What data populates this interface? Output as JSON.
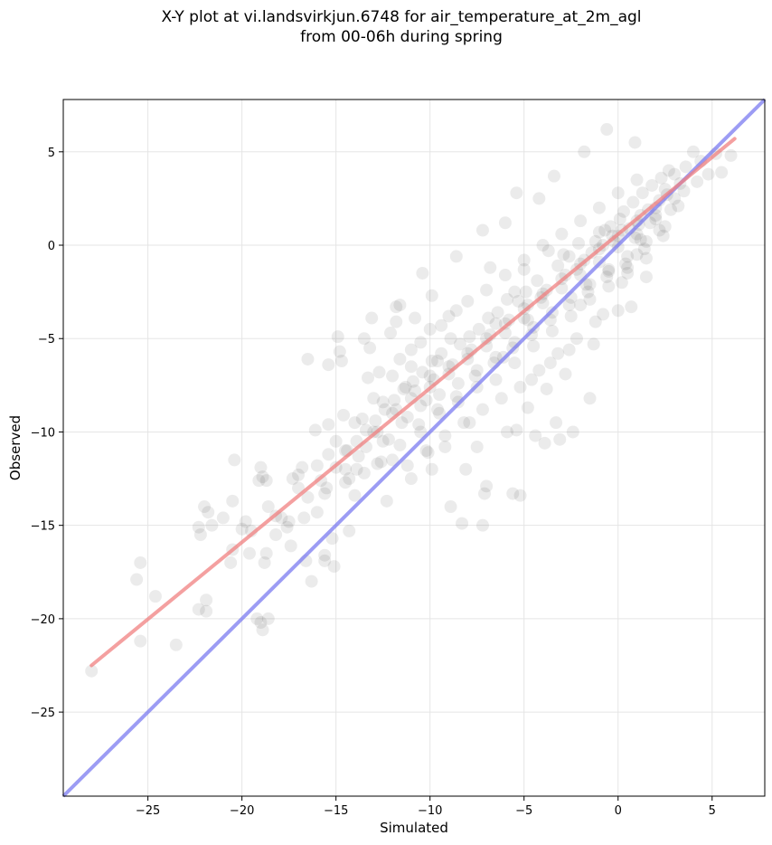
{
  "chart_data": {
    "type": "scatter",
    "title_line1": "X-Y plot at vi.landsvirkjun.6748 for air_temperature_at_2m_agl",
    "title_line2": "from 00-06h during spring",
    "xlabel": "Simulated",
    "ylabel": "Observed",
    "xlim": [
      -29.5,
      7.8
    ],
    "ylim": [
      -29.5,
      7.8
    ],
    "xticks": [
      -25,
      -20,
      -15,
      -10,
      -5,
      0,
      5
    ],
    "yticks": [
      -25,
      -20,
      -15,
      -10,
      -5,
      0,
      5
    ],
    "xtick_labels": [
      "−25",
      "−20",
      "−15",
      "−10",
      "−5",
      "0",
      "5"
    ],
    "ytick_labels": [
      "−25",
      "−20",
      "−15",
      "−10",
      "−5",
      "0",
      "5"
    ],
    "grid": true,
    "point_color": "#000000",
    "point_opacity": 0.08,
    "regression_line": {
      "color": "#f08080",
      "x": [
        -28,
        6.2
      ],
      "y": [
        -22.5,
        5.7
      ]
    },
    "identity_line": {
      "color": "#7b7bf0",
      "x": [
        -29.5,
        7.8
      ],
      "y": [
        -29.5,
        7.8
      ]
    },
    "points": [
      [
        -28.0,
        -22.8
      ],
      [
        -25.6,
        -17.9
      ],
      [
        -25.4,
        -17.0
      ],
      [
        -25.4,
        -21.2
      ],
      [
        -24.6,
        -18.8
      ],
      [
        -23.5,
        -21.4
      ],
      [
        -22.2,
        -15.5
      ],
      [
        -22.0,
        -14.0
      ],
      [
        -21.9,
        -19.0
      ],
      [
        -21.8,
        -14.3
      ],
      [
        -21.6,
        -15.0
      ],
      [
        -21.0,
        -14.6
      ],
      [
        -22.3,
        -15.1
      ],
      [
        -21.9,
        -19.6
      ],
      [
        -22.3,
        -19.5
      ],
      [
        -20.5,
        -13.7
      ],
      [
        -20.4,
        -11.5
      ],
      [
        -20.5,
        -16.3
      ],
      [
        -20.6,
        -17.0
      ],
      [
        -20.0,
        -15.2
      ],
      [
        -19.8,
        -14.8
      ],
      [
        -19.5,
        -15.3
      ],
      [
        -19.6,
        -16.5
      ],
      [
        -19.1,
        -12.6
      ],
      [
        -19.0,
        -11.9
      ],
      [
        -18.9,
        -12.4
      ],
      [
        -18.7,
        -12.6
      ],
      [
        -18.6,
        -14.0
      ],
      [
        -18.8,
        -17.0
      ],
      [
        -18.7,
        -16.5
      ],
      [
        -19.2,
        -20.0
      ],
      [
        -18.9,
        -20.6
      ],
      [
        -18.6,
        -20.0
      ],
      [
        -19.0,
        -20.2
      ],
      [
        -18.2,
        -14.5
      ],
      [
        -18.2,
        -15.5
      ],
      [
        -17.9,
        -14.6
      ],
      [
        -17.6,
        -15.1
      ],
      [
        -17.5,
        -14.8
      ],
      [
        -17.4,
        -16.1
      ],
      [
        -17.3,
        -12.5
      ],
      [
        -17.0,
        -12.3
      ],
      [
        -16.8,
        -11.9
      ],
      [
        -16.7,
        -14.6
      ],
      [
        -16.6,
        -16.9
      ],
      [
        -16.3,
        -18.0
      ],
      [
        -16.5,
        -6.1
      ],
      [
        -16.1,
        -9.9
      ],
      [
        -16.0,
        -14.3
      ],
      [
        -15.8,
        -12.6
      ],
      [
        -15.6,
        -13.3
      ],
      [
        -15.4,
        -11.2
      ],
      [
        -15.4,
        -9.6
      ],
      [
        -15.2,
        -15.7
      ],
      [
        -15.1,
        -17.2
      ],
      [
        -15.0,
        -11.9
      ],
      [
        -15.6,
        -16.6
      ],
      [
        -15.6,
        -16.9
      ],
      [
        -15.4,
        -6.4
      ],
      [
        -14.9,
        -4.9
      ],
      [
        -14.8,
        -5.7
      ],
      [
        -14.7,
        -6.2
      ],
      [
        -14.3,
        -12.5
      ],
      [
        -14.5,
        -11.0
      ],
      [
        -14.6,
        -9.1
      ],
      [
        -14.3,
        -15.3
      ],
      [
        -14.0,
        -13.4
      ],
      [
        -13.9,
        -12.0
      ],
      [
        -13.6,
        -9.3
      ],
      [
        -13.4,
        -10.8
      ],
      [
        -13.3,
        -7.1
      ],
      [
        -13.2,
        -5.5
      ],
      [
        -13.1,
        -3.9
      ],
      [
        -12.8,
        -11.7
      ],
      [
        -12.5,
        -8.4
      ],
      [
        -12.2,
        -10.4
      ],
      [
        -12.3,
        -13.7
      ],
      [
        -12.1,
        -4.7
      ],
      [
        -11.8,
        -4.1
      ],
      [
        -11.6,
        -6.1
      ],
      [
        -11.6,
        -3.2
      ],
      [
        -11.3,
        -7.6
      ],
      [
        -11.2,
        -9.2
      ],
      [
        -11.0,
        -12.5
      ],
      [
        -10.8,
        -3.9
      ],
      [
        -10.5,
        -5.2
      ],
      [
        -10.4,
        -1.5
      ],
      [
        -10.2,
        -8.3
      ],
      [
        -10.1,
        -11.1
      ],
      [
        -9.9,
        -12.0
      ],
      [
        -9.6,
        -6.2
      ],
      [
        -9.4,
        -4.3
      ],
      [
        -9.2,
        -10.8
      ],
      [
        -8.9,
        -14.0
      ],
      [
        -8.6,
        -3.5
      ],
      [
        -8.3,
        -14.9
      ],
      [
        -8.1,
        -12.0
      ],
      [
        -7.9,
        -9.5
      ],
      [
        -7.5,
        -10.8
      ],
      [
        -7.2,
        -15.0
      ],
      [
        -7.1,
        -13.3
      ],
      [
        -7.0,
        -12.9
      ],
      [
        -6.8,
        -1.2
      ],
      [
        -6.5,
        -4.2
      ],
      [
        -6.1,
        -6.0
      ],
      [
        -5.9,
        -10.0
      ],
      [
        -5.6,
        -13.3
      ],
      [
        -5.5,
        -2.5
      ],
      [
        -5.4,
        -9.9
      ],
      [
        -5.2,
        -13.4
      ],
      [
        -5.0,
        -1.3
      ],
      [
        -4.8,
        -4.0
      ],
      [
        -4.6,
        -7.2
      ],
      [
        -4.4,
        -10.2
      ],
      [
        -4.1,
        -2.8
      ],
      [
        -3.9,
        -10.6
      ],
      [
        -3.6,
        -6.3
      ],
      [
        -3.3,
        -9.5
      ],
      [
        -3.1,
        -10.4
      ],
      [
        -2.9,
        -0.5
      ],
      [
        -2.6,
        -5.6
      ],
      [
        -2.4,
        -10.0
      ],
      [
        -2.2,
        -1.3
      ],
      [
        -2.0,
        -3.2
      ],
      [
        -1.7,
        -2.1
      ],
      [
        -1.5,
        -8.2
      ],
      [
        -1.3,
        -5.3
      ],
      [
        -1.0,
        0.7
      ],
      [
        -0.8,
        -3.7
      ],
      [
        -0.5,
        -1.3
      ],
      [
        -0.3,
        0.5
      ],
      [
        0.0,
        -3.5
      ],
      [
        0.2,
        -2.0
      ],
      [
        0.5,
        -1.2
      ],
      [
        0.7,
        -3.3
      ],
      [
        1.0,
        -0.5
      ],
      [
        1.2,
        0.3
      ],
      [
        1.5,
        -1.7
      ],
      [
        1.7,
        1.2
      ],
      [
        2.0,
        1.6
      ],
      [
        2.2,
        0.8
      ],
      [
        2.5,
        3.0
      ],
      [
        2.7,
        4.0
      ],
      [
        3.0,
        2.5
      ],
      [
        3.3,
        3.3
      ],
      [
        3.6,
        4.2
      ],
      [
        4.0,
        5.0
      ],
      [
        4.4,
        4.5
      ],
      [
        4.8,
        3.8
      ],
      [
        5.2,
        4.9
      ],
      [
        5.5,
        3.9
      ],
      [
        6.0,
        4.8
      ],
      [
        -0.6,
        6.2
      ],
      [
        0.9,
        5.5
      ],
      [
        -1.8,
        5.0
      ],
      [
        -3.4,
        3.7
      ],
      [
        -4.2,
        2.5
      ],
      [
        -5.4,
        2.8
      ],
      [
        -6.0,
        1.2
      ],
      [
        -7.2,
        0.8
      ],
      [
        -8.6,
        -0.6
      ],
      [
        -9.9,
        -2.7
      ],
      [
        -11.8,
        -3.3
      ],
      [
        -13.5,
        -5.0
      ],
      [
        -12.7,
        -6.8
      ],
      [
        -11.0,
        -6.5
      ],
      [
        -10.0,
        -7.0
      ],
      [
        -9.0,
        -6.5
      ],
      [
        -8.0,
        -5.8
      ],
      [
        -7.0,
        -5.0
      ],
      [
        -6.0,
        -4.2
      ],
      [
        -5.0,
        -3.4
      ],
      [
        -4.0,
        -2.6
      ],
      [
        -3.0,
        -1.8
      ],
      [
        -2.0,
        -1.0
      ],
      [
        -1.0,
        -0.2
      ],
      [
        0.0,
        0.5
      ],
      [
        1.0,
        1.3
      ],
      [
        2.0,
        2.0
      ],
      [
        -12.0,
        -9.0
      ],
      [
        -11.0,
        -8.2
      ],
      [
        -10.0,
        -7.6
      ],
      [
        -9.0,
        -6.9
      ],
      [
        -8.0,
        -6.1
      ],
      [
        -7.0,
        -5.4
      ],
      [
        -6.0,
        -4.7
      ],
      [
        -5.0,
        -3.9
      ],
      [
        -4.0,
        -3.1
      ],
      [
        -3.0,
        -2.3
      ],
      [
        -2.0,
        -1.6
      ],
      [
        -1.0,
        -0.9
      ],
      [
        0.0,
        -0.1
      ],
      [
        1.0,
        0.6
      ],
      [
        2.0,
        1.4
      ],
      [
        -13.0,
        -10.0
      ],
      [
        -12.5,
        -10.5
      ],
      [
        -11.5,
        -9.5
      ],
      [
        -10.5,
        -8.6
      ],
      [
        -9.5,
        -8.0
      ],
      [
        -8.5,
        -7.4
      ],
      [
        -7.5,
        -6.7
      ],
      [
        -6.5,
        -6.0
      ],
      [
        -5.5,
        -5.2
      ],
      [
        -4.5,
        -4.4
      ],
      [
        -3.5,
        -3.6
      ],
      [
        -2.5,
        -2.8
      ],
      [
        -1.5,
        -2.1
      ],
      [
        -0.5,
        -1.4
      ],
      [
        0.5,
        -0.6
      ],
      [
        1.5,
        0.2
      ],
      [
        2.5,
        1.0
      ],
      [
        -14.5,
        -12.0
      ],
      [
        -13.8,
        -11.3
      ],
      [
        -12.8,
        -10.0
      ],
      [
        -11.8,
        -8.8
      ],
      [
        -10.8,
        -7.8
      ],
      [
        -9.8,
        -7.2
      ],
      [
        -8.8,
        -6.4
      ],
      [
        -7.8,
        -5.6
      ],
      [
        -6.8,
        -4.8
      ],
      [
        -5.8,
        -4.0
      ],
      [
        -4.8,
        -3.2
      ],
      [
        -3.8,
        -2.4
      ],
      [
        -2.8,
        -1.6
      ],
      [
        -1.8,
        -0.8
      ],
      [
        -0.8,
        0.0
      ],
      [
        0.2,
        0.8
      ],
      [
        1.2,
        1.6
      ],
      [
        2.2,
        2.4
      ],
      [
        -12.0,
        -11.5
      ],
      [
        -10.5,
        -10.0
      ],
      [
        -9.5,
        -9.0
      ],
      [
        -8.5,
        -8.4
      ],
      [
        -7.5,
        -7.6
      ],
      [
        -6.5,
        -7.2
      ],
      [
        -5.5,
        -6.3
      ],
      [
        -4.5,
        -5.4
      ],
      [
        -3.5,
        -4.6
      ],
      [
        -2.5,
        -3.8
      ],
      [
        -1.5,
        -2.9
      ],
      [
        -0.5,
        -2.2
      ],
      [
        0.5,
        -1.5
      ],
      [
        1.5,
        -0.7
      ],
      [
        -10.0,
        -4.5
      ],
      [
        -9.0,
        -3.8
      ],
      [
        -8.0,
        -3.0
      ],
      [
        -7.0,
        -2.4
      ],
      [
        -6.0,
        -1.6
      ],
      [
        -5.0,
        -0.8
      ],
      [
        -4.0,
        0.0
      ],
      [
        -3.0,
        0.6
      ],
      [
        -2.0,
        1.3
      ],
      [
        -1.0,
        2.0
      ],
      [
        0.0,
        2.8
      ],
      [
        1.0,
        3.5
      ],
      [
        -11.0,
        -5.6
      ],
      [
        -12.0,
        -7.0
      ],
      [
        -13.0,
        -8.2
      ],
      [
        -14.0,
        -9.5
      ],
      [
        -15.0,
        -10.5
      ],
      [
        -16.0,
        -11.8
      ],
      [
        -17.0,
        -13.0
      ],
      [
        -16.5,
        -13.5
      ],
      [
        -15.5,
        -13.0
      ],
      [
        -14.5,
        -12.7
      ],
      [
        -13.5,
        -12.2
      ],
      [
        -12.6,
        -11.6
      ],
      [
        -11.6,
        -10.7
      ],
      [
        -10.6,
        -9.6
      ],
      [
        -9.6,
        -8.8
      ],
      [
        -8.6,
        -8.1
      ],
      [
        -7.6,
        -7.0
      ],
      [
        -6.6,
        -6.3
      ],
      [
        -5.6,
        -5.5
      ],
      [
        -4.6,
        -4.8
      ],
      [
        -3.6,
        -4.0
      ],
      [
        -2.6,
        -3.2
      ],
      [
        -1.6,
        -2.5
      ],
      [
        -0.6,
        -1.7
      ],
      [
        0.4,
        -1.0
      ],
      [
        1.4,
        -0.2
      ],
      [
        2.4,
        0.5
      ],
      [
        -0.4,
        1.0
      ],
      [
        0.3,
        1.8
      ],
      [
        0.8,
        2.3
      ],
      [
        1.3,
        2.8
      ],
      [
        1.8,
        3.2
      ],
      [
        2.3,
        3.6
      ],
      [
        -0.2,
        0.2
      ],
      [
        0.6,
        0.9
      ],
      [
        1.1,
        1.1
      ],
      [
        1.6,
        1.9
      ],
      [
        0.1,
        1.4
      ],
      [
        0.9,
        0.4
      ],
      [
        -1.2,
        0.2
      ],
      [
        -0.7,
        0.8
      ],
      [
        -1.4,
        -0.4
      ],
      [
        -2.1,
        0.1
      ],
      [
        -2.6,
        -0.6
      ],
      [
        -3.2,
        -1.1
      ],
      [
        -3.7,
        -0.3
      ],
      [
        -4.3,
        -1.9
      ],
      [
        -4.9,
        -2.5
      ],
      [
        -5.3,
        -3.0
      ],
      [
        -5.9,
        -2.9
      ],
      [
        -6.4,
        -3.6
      ],
      [
        -6.9,
        -3.9
      ],
      [
        -7.4,
        -4.5
      ],
      [
        -7.9,
        -4.9
      ],
      [
        -8.4,
        -5.3
      ],
      [
        -8.9,
        -5.0
      ],
      [
        -9.4,
        -5.8
      ],
      [
        -9.9,
        -6.2
      ],
      [
        -10.4,
        -6.8
      ],
      [
        -10.9,
        -7.3
      ],
      [
        -11.4,
        -7.7
      ],
      [
        -11.9,
        -8.3
      ],
      [
        -12.4,
        -8.8
      ],
      [
        -12.9,
        -9.4
      ],
      [
        -13.4,
        -9.9
      ],
      [
        -13.9,
        -10.5
      ],
      [
        -14.4,
        -11.0
      ],
      [
        -8.2,
        -9.5
      ],
      [
        -7.2,
        -8.8
      ],
      [
        -6.2,
        -8.2
      ],
      [
        -5.2,
        -7.6
      ],
      [
        -4.2,
        -6.7
      ],
      [
        -3.2,
        -5.8
      ],
      [
        -2.2,
        -5.0
      ],
      [
        -1.2,
        -4.1
      ],
      [
        -9.2,
        -10.2
      ],
      [
        -10.2,
        -11.0
      ],
      [
        -11.2,
        -11.8
      ],
      [
        -4.8,
        -8.7
      ],
      [
        -3.8,
        -7.7
      ],
      [
        -2.8,
        -6.9
      ],
      [
        3.0,
        3.8
      ],
      [
        3.5,
        2.9
      ],
      [
        4.2,
        3.4
      ],
      [
        2.8,
        1.9
      ],
      [
        3.2,
        2.1
      ],
      [
        2.6,
        2.7
      ]
    ]
  }
}
